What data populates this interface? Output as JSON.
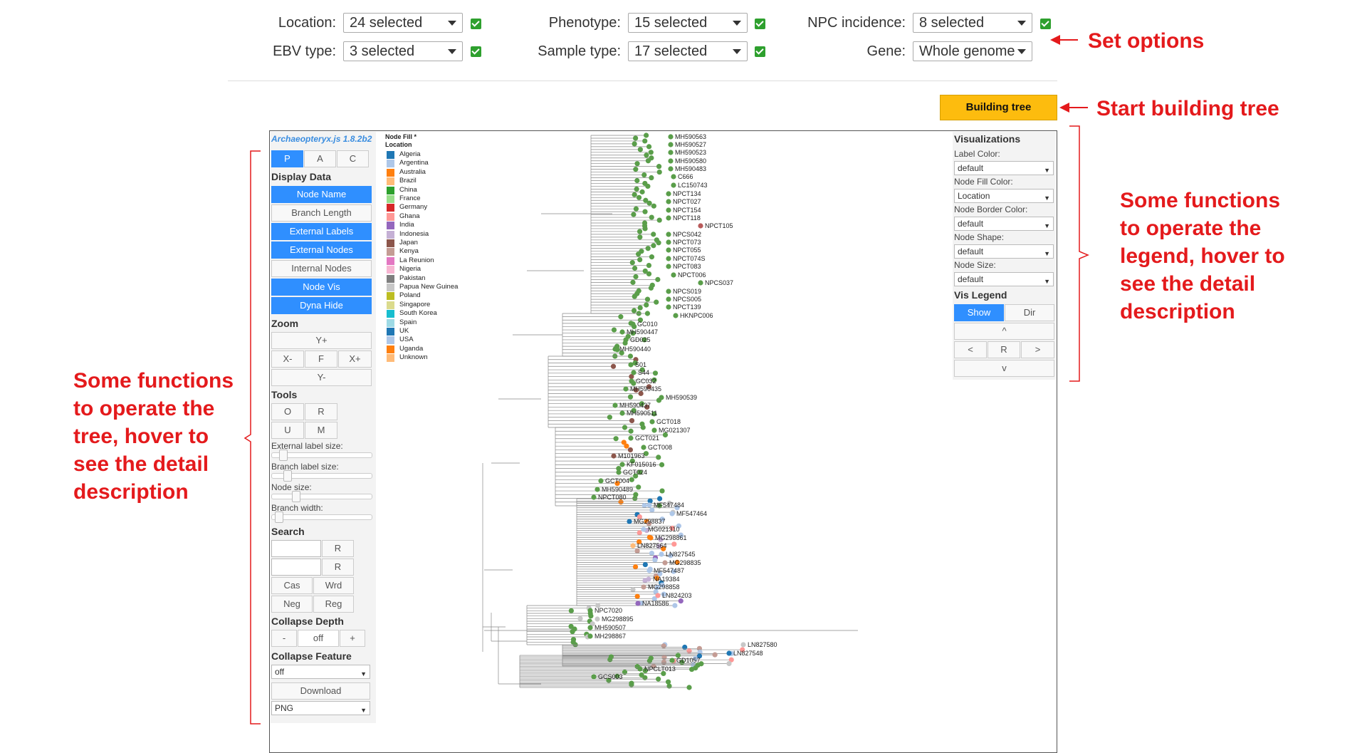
{
  "filters": {
    "location": {
      "label": "Location:",
      "value": "24 selected"
    },
    "phenotype": {
      "label": "Phenotype:",
      "value": "15 selected"
    },
    "npc": {
      "label": "NPC incidence:",
      "value": "8 selected"
    },
    "ebv": {
      "label": "EBV type:",
      "value": "3 selected"
    },
    "sample": {
      "label": "Sample type:",
      "value": "17 selected"
    },
    "gene": {
      "label": "Gene:",
      "value": "Whole genome"
    }
  },
  "build_button": "Building tree",
  "annotations": {
    "set_options": "Set options",
    "start_building": "Start building tree",
    "left": [
      "Some functions",
      "to operate the",
      "tree, hover to",
      "see the detail",
      "description"
    ],
    "right": [
      "Some functions",
      "to operate the",
      "legend, hover to",
      "see the detail",
      "description"
    ]
  },
  "left_panel": {
    "version": "Archaeopteryx.js 1.8.2b2",
    "tabs": [
      "P",
      "A",
      "C"
    ],
    "display_title": "Display Data",
    "display_buttons": [
      {
        "label": "Node Name",
        "on": true
      },
      {
        "label": "Branch Length",
        "on": false
      },
      {
        "label": "External Labels",
        "on": true
      },
      {
        "label": "External Nodes",
        "on": true
      },
      {
        "label": "Internal Nodes",
        "on": false
      },
      {
        "label": "Node Vis",
        "on": true
      },
      {
        "label": "Dyna Hide",
        "on": true
      }
    ],
    "zoom_title": "Zoom",
    "zoom": {
      "yplus": "Y+",
      "xminus": "X-",
      "f": "F",
      "xplus": "X+",
      "yminus": "Y-"
    },
    "tools_title": "Tools",
    "tools": {
      "o": "O",
      "r": "R",
      "u": "U",
      "m": "M"
    },
    "sliders": {
      "ext_label": "External label size:",
      "branch_label": "Branch label size:",
      "node_size": "Node size:",
      "branch_width": "Branch width:"
    },
    "search_title": "Search",
    "search": {
      "r1": "R",
      "r2": "R",
      "cas": "Cas",
      "wrd": "Wrd",
      "neg": "Neg",
      "reg": "Reg"
    },
    "collapse_depth_title": "Collapse Depth",
    "collapse_depth": {
      "minus": "-",
      "value": "off",
      "plus": "+"
    },
    "collapse_feature_title": "Collapse Feature",
    "collapse_feature_value": "off",
    "download": "Download",
    "format": "PNG"
  },
  "right_panel": {
    "title": "Visualizations",
    "label_color": {
      "label": "Label Color:",
      "value": "default"
    },
    "node_fill_color": {
      "label": "Node Fill Color:",
      "value": "Location"
    },
    "node_border_color": {
      "label": "Node Border Color:",
      "value": "default"
    },
    "node_shape": {
      "label": "Node Shape:",
      "value": "default"
    },
    "node_size": {
      "label": "Node Size:",
      "value": "default"
    },
    "vis_legend_title": "Vis Legend",
    "show": "Show",
    "dir": "Dir",
    "up": "^",
    "left": "<",
    "r": "R",
    "right": ">",
    "down": "v"
  },
  "legend": {
    "title1": "Node Fill *",
    "title2": "Location",
    "items": [
      {
        "name": "Algeria",
        "color": "#1f77b4"
      },
      {
        "name": "Argentina",
        "color": "#aec7e8"
      },
      {
        "name": "Australia",
        "color": "#ff7f0e"
      },
      {
        "name": "Brazil",
        "color": "#ffbb78"
      },
      {
        "name": "China",
        "color": "#2ca02c"
      },
      {
        "name": "France",
        "color": "#98df8a"
      },
      {
        "name": "Germany",
        "color": "#d62728"
      },
      {
        "name": "Ghana",
        "color": "#ff9896"
      },
      {
        "name": "India",
        "color": "#9467bd"
      },
      {
        "name": "Indonesia",
        "color": "#c5b0d5"
      },
      {
        "name": "Japan",
        "color": "#8c564b"
      },
      {
        "name": "Kenya",
        "color": "#c49c94"
      },
      {
        "name": "La Reunion",
        "color": "#e377c2"
      },
      {
        "name": "Nigeria",
        "color": "#f7b6d2"
      },
      {
        "name": "Pakistan",
        "color": "#7f7f7f"
      },
      {
        "name": "Papua New Guinea",
        "color": "#c7c7c7"
      },
      {
        "name": "Poland",
        "color": "#bcbd22"
      },
      {
        "name": "Singapore",
        "color": "#dbdb8d"
      },
      {
        "name": "South Korea",
        "color": "#17becf"
      },
      {
        "name": "Spain",
        "color": "#9edae5"
      },
      {
        "name": "UK",
        "color": "#1f77b4"
      },
      {
        "name": "USA",
        "color": "#aec7e8"
      },
      {
        "name": "Uganda",
        "color": "#ff7f0e"
      },
      {
        "name": "Unknown",
        "color": "#ffbb78"
      }
    ]
  },
  "tree_labels": [
    {
      "text": "MH590563",
      "c": "#5a9e4a"
    },
    {
      "text": "MH590527",
      "c": "#5a9e4a"
    },
    {
      "text": "MH590523",
      "c": "#5a9e4a"
    },
    {
      "text": "MH590580",
      "c": "#5a9e4a"
    },
    {
      "text": "MH590483",
      "c": "#5a9e4a"
    },
    {
      "text": "C666",
      "c": "#5a9e4a"
    },
    {
      "text": "LC150743",
      "c": "#5a9e4a"
    },
    {
      "text": "NPCT134",
      "c": "#5a9e4a"
    },
    {
      "text": "NPCT027",
      "c": "#5a9e4a"
    },
    {
      "text": "NPCT154",
      "c": "#5a9e4a"
    },
    {
      "text": "NPCT118",
      "c": "#5a9e4a"
    },
    {
      "text": "NPCT105",
      "c": "#b85a5a"
    },
    {
      "text": "NPCS042",
      "c": "#5a9e4a"
    },
    {
      "text": "NPCT073",
      "c": "#5a9e4a"
    },
    {
      "text": "NPCT055",
      "c": "#5a9e4a"
    },
    {
      "text": "NPCT074S",
      "c": "#5a9e4a"
    },
    {
      "text": "NPCT083",
      "c": "#5a9e4a"
    },
    {
      "text": "NPCT006",
      "c": "#5a9e4a"
    },
    {
      "text": "NPCS037",
      "c": "#5a9e4a"
    },
    {
      "text": "NPCS019",
      "c": "#5a9e4a"
    },
    {
      "text": "NPCS005",
      "c": "#5a9e4a"
    },
    {
      "text": "NPCT139",
      "c": "#5a9e4a"
    },
    {
      "text": "HKNPC006",
      "c": "#5a9e4a"
    },
    {
      "text": "GC010",
      "c": "#5a9e4a"
    },
    {
      "text": "MH590447",
      "c": "#5a9e4a"
    },
    {
      "text": "GD025",
      "c": "#5a9e4a"
    },
    {
      "text": "MH590440",
      "c": "#5a9e4a"
    },
    {
      "text": "S01",
      "c": "#5a9e4a"
    },
    {
      "text": "S44",
      "c": "#5a9e4a"
    },
    {
      "text": "GC032",
      "c": "#5a9e4a"
    },
    {
      "text": "MH590435",
      "c": "#5a9e4a"
    },
    {
      "text": "MH590539",
      "c": "#5a9e4a"
    },
    {
      "text": "MH590437",
      "c": "#5a9e4a"
    },
    {
      "text": "MH590511",
      "c": "#5a9e4a"
    },
    {
      "text": "GCT018",
      "c": "#5a9e4a"
    },
    {
      "text": "MG021307",
      "c": "#5a9e4a"
    },
    {
      "text": "GCT021",
      "c": "#5a9e4a"
    },
    {
      "text": "GCT008",
      "c": "#5a9e4a"
    },
    {
      "text": "M101963",
      "c": "#8c564b"
    },
    {
      "text": "KF015016",
      "c": "#5a9e4a"
    },
    {
      "text": "GCT024",
      "c": "#5a9e4a"
    },
    {
      "text": "GCT004",
      "c": "#5a9e4a"
    },
    {
      "text": "MH590489",
      "c": "#5a9e4a"
    },
    {
      "text": "NPCT080",
      "c": "#5a9e4a"
    },
    {
      "text": "MF547484",
      "c": "#aec7e8"
    },
    {
      "text": "MF547464",
      "c": "#aec7e8"
    },
    {
      "text": "MG298837",
      "c": "#1f77b4"
    },
    {
      "text": "MG021310",
      "c": "#aec7e8"
    },
    {
      "text": "MG298861",
      "c": "#ff7f0e"
    },
    {
      "text": "LN827564",
      "c": "#ffbb78"
    },
    {
      "text": "LN827545",
      "c": "#aec7e8"
    },
    {
      "text": "MG298835",
      "c": "#c49c94"
    },
    {
      "text": "MF547487",
      "c": "#aec7e8"
    },
    {
      "text": "NA19384",
      "c": "#c5b0d5"
    },
    {
      "text": "MG298858",
      "c": "#c49c94"
    },
    {
      "text": "LN824203",
      "c": "#ff9896"
    },
    {
      "text": "NA18586",
      "c": "#9467bd"
    },
    {
      "text": "NPC7020",
      "c": "#5a9e4a"
    },
    {
      "text": "MG298895",
      "c": "#c7c7c7"
    },
    {
      "text": "MH590507",
      "c": "#5a9e4a"
    },
    {
      "text": "MH298867",
      "c": "#5a9e4a"
    },
    {
      "text": "LN827580",
      "c": "#c7c7c7"
    },
    {
      "text": "LN827548",
      "c": "#1f77b4"
    },
    {
      "text": "GD1057",
      "c": "#5a9e4a"
    },
    {
      "text": "NPCLT013",
      "c": "#5a9e4a"
    },
    {
      "text": "GCS003",
      "c": "#5a9e4a"
    }
  ]
}
